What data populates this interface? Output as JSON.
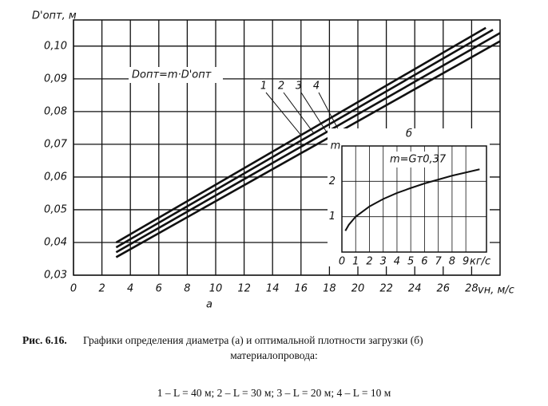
{
  "chart_data": [
    {
      "type": "line",
      "y_label": "D'опт, м",
      "x_label": "vн, м/с",
      "panel_label": "а",
      "annotation": "Dопт=m·D'опт",
      "xlim": [
        0,
        30
      ],
      "xticks": [
        0,
        2,
        4,
        6,
        8,
        10,
        12,
        14,
        16,
        18,
        20,
        22,
        24,
        26,
        28
      ],
      "ylim": [
        0.03,
        0.108
      ],
      "yticks": [
        {
          "value": 0.03,
          "label": "0,03"
        },
        {
          "value": 0.04,
          "label": "0,04"
        },
        {
          "value": 0.05,
          "label": "0,05"
        },
        {
          "value": 0.06,
          "label": "0,06"
        },
        {
          "value": 0.07,
          "label": "0,07"
        },
        {
          "value": 0.08,
          "label": "0,08"
        },
        {
          "value": 0.09,
          "label": "0,09"
        },
        {
          "value": 0.1,
          "label": "0,10"
        }
      ],
      "grid": true,
      "series": [
        {
          "name": "1",
          "color": "#111111",
          "x": [
            3,
            29
          ],
          "values": [
            0.04,
            0.1056
          ]
        },
        {
          "name": "2",
          "color": "#111111",
          "x": [
            3,
            29.5
          ],
          "values": [
            0.0385,
            0.105
          ]
        },
        {
          "name": "3",
          "color": "#111111",
          "x": [
            3,
            30
          ],
          "values": [
            0.037,
            0.104
          ]
        },
        {
          "name": "4",
          "color": "#111111",
          "x": [
            3,
            30
          ],
          "values": [
            0.0355,
            0.1015
          ]
        }
      ]
    },
    {
      "type": "line",
      "y_label": "m",
      "x_label": "кг/с",
      "panel_label": "б",
      "annotation": "m=Gт0,37",
      "xlim": [
        0,
        10.5
      ],
      "xticks": [
        0,
        1,
        2,
        3,
        4,
        5,
        6,
        7,
        8,
        9
      ],
      "ylim": [
        0,
        3
      ],
      "yticks": [
        1,
        2
      ],
      "grid": true,
      "series": [
        {
          "color": "#111111",
          "x": [
            0.25,
            0.5,
            1,
            2,
            3,
            4,
            5,
            6,
            7,
            8,
            9,
            10
          ],
          "values": [
            0.6,
            0.77,
            1,
            1.29,
            1.5,
            1.67,
            1.81,
            1.94,
            2.05,
            2.16,
            2.25,
            2.34
          ]
        }
      ]
    }
  ],
  "caption": {
    "label": "Рис. 6.16.",
    "line1": "Графики определения диаметра (а) и оптимальной плотности загрузки (б)",
    "line2": "материалопровода:",
    "legend": "1 – L = 40 м;  2 – L = 30 м;  3 – L = 20 м;  4 – L = 10 м"
  }
}
